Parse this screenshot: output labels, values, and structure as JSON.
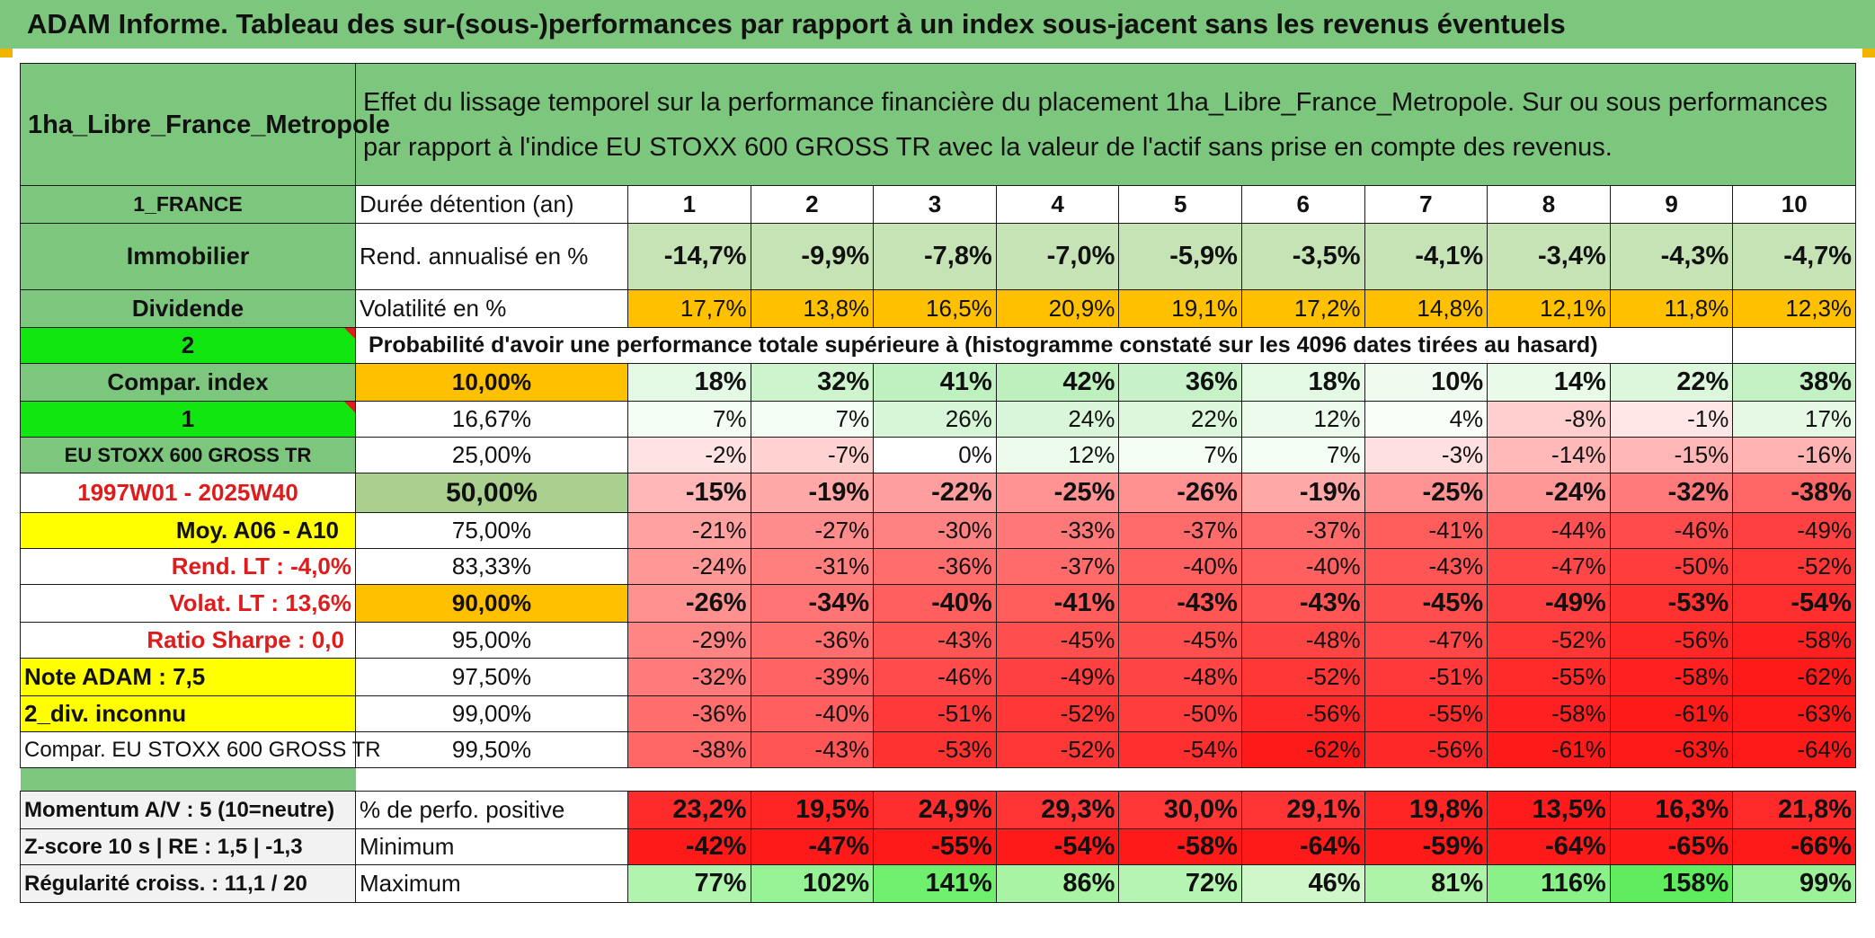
{
  "title": "ADAM Informe. Tableau des sur-(sous-)performances par rapport à un index sous-jacent sans les revenus éventuels",
  "header": {
    "left": "1ha_Libre_France_Metropole",
    "description": "Effet du lissage temporel sur la performance financière du placement 1ha_Libre_France_Metropole. Sur ou sous performances par rapport à l'indice EU STOXX 600 GROSS TR avec la valeur de l'actif sans prise en compte des revenus."
  },
  "sidebar": {
    "country": "1_FRANCE",
    "asset_class": "Immobilier",
    "income": "Dividende",
    "num_2": "2",
    "compar_index": "Compar. index",
    "num_1": "1",
    "index_name": "EU STOXX 600 GROSS TR",
    "period": "1997W01 - 2025W40",
    "moy": "Moy. A06 - A10",
    "rend_lt": "Rend. LT :    -4,0%",
    "volat_lt": "Volat. LT :    13,6%",
    "sharpe": "Ratio Sharpe :    0,0",
    "note": "Note ADAM : 7,5",
    "div": "2_div. inconnu",
    "compar_full": "Compar. EU STOXX 600 GROSS TR",
    "momentum": "Momentum A/V : 5 (10=neutre)",
    "zscore": "Z-score 10 s | RE : 1,5 | -1,3",
    "regularite": "Régularité croiss. : 11,1 / 20"
  },
  "row_labels": {
    "duree": "Durée détention (an)",
    "rend": "Rend. annualisé en %",
    "vol": "Volatilité en %",
    "proba": "Probabilité d'avoir une performance totale supérieure à (histogramme constaté sur les 4096 dates tirées au hasard)",
    "pos": "% de perfo. positive",
    "min": "Minimum",
    "max": "Maximum"
  },
  "years": [
    "1",
    "2",
    "3",
    "4",
    "5",
    "6",
    "7",
    "8",
    "9",
    "10"
  ],
  "rend": [
    "-14,7%",
    "-9,9%",
    "-7,8%",
    "-7,0%",
    "-5,9%",
    "-3,5%",
    "-4,1%",
    "-3,4%",
    "-4,3%",
    "-4,7%"
  ],
  "vol": [
    "17,7%",
    "13,8%",
    "16,5%",
    "20,9%",
    "19,1%",
    "17,2%",
    "14,8%",
    "12,1%",
    "11,8%",
    "12,3%"
  ],
  "percentiles": [
    {
      "p": "10,00%",
      "v": [
        "18%",
        "32%",
        "41%",
        "42%",
        "36%",
        "18%",
        "10%",
        "14%",
        "22%",
        "38%"
      ],
      "bold": true
    },
    {
      "p": "16,67%",
      "v": [
        "7%",
        "7%",
        "26%",
        "24%",
        "22%",
        "12%",
        "4%",
        "-8%",
        "-1%",
        "17%"
      ],
      "bold": false
    },
    {
      "p": "25,00%",
      "v": [
        "-2%",
        "-7%",
        "0%",
        "12%",
        "7%",
        "7%",
        "-3%",
        "-14%",
        "-15%",
        "-16%"
      ],
      "bold": false
    },
    {
      "p": "50,00%",
      "v": [
        "-15%",
        "-19%",
        "-22%",
        "-25%",
        "-26%",
        "-19%",
        "-25%",
        "-24%",
        "-32%",
        "-38%"
      ],
      "bold": true
    },
    {
      "p": "75,00%",
      "v": [
        "-21%",
        "-27%",
        "-30%",
        "-33%",
        "-37%",
        "-37%",
        "-41%",
        "-44%",
        "-46%",
        "-49%"
      ],
      "bold": false
    },
    {
      "p": "83,33%",
      "v": [
        "-24%",
        "-31%",
        "-36%",
        "-37%",
        "-40%",
        "-40%",
        "-43%",
        "-47%",
        "-50%",
        "-52%"
      ],
      "bold": false
    },
    {
      "p": "90,00%",
      "v": [
        "-26%",
        "-34%",
        "-40%",
        "-41%",
        "-43%",
        "-43%",
        "-45%",
        "-49%",
        "-53%",
        "-54%"
      ],
      "bold": true
    },
    {
      "p": "95,00%",
      "v": [
        "-29%",
        "-36%",
        "-43%",
        "-45%",
        "-45%",
        "-48%",
        "-47%",
        "-52%",
        "-56%",
        "-58%"
      ],
      "bold": false
    },
    {
      "p": "97,50%",
      "v": [
        "-32%",
        "-39%",
        "-46%",
        "-49%",
        "-48%",
        "-52%",
        "-51%",
        "-55%",
        "-58%",
        "-62%"
      ],
      "bold": false
    },
    {
      "p": "99,00%",
      "v": [
        "-36%",
        "-40%",
        "-51%",
        "-52%",
        "-50%",
        "-56%",
        "-55%",
        "-58%",
        "-61%",
        "-63%"
      ],
      "bold": false
    },
    {
      "p": "99,50%",
      "v": [
        "-38%",
        "-43%",
        "-53%",
        "-52%",
        "-54%",
        "-62%",
        "-56%",
        "-61%",
        "-63%",
        "-64%"
      ],
      "bold": false
    }
  ],
  "pos": [
    "23,2%",
    "19,5%",
    "24,9%",
    "29,3%",
    "30,0%",
    "29,1%",
    "19,8%",
    "13,5%",
    "16,3%",
    "21,8%"
  ],
  "min": [
    "-42%",
    "-47%",
    "-55%",
    "-54%",
    "-58%",
    "-64%",
    "-59%",
    "-64%",
    "-65%",
    "-66%"
  ],
  "max": [
    "77%",
    "102%",
    "141%",
    "86%",
    "72%",
    "46%",
    "81%",
    "116%",
    "158%",
    "99%"
  ],
  "colors": {
    "header_green": "#7dc67d",
    "bright_green": "#11e611",
    "yellow": "#ffff00",
    "orange": "#ffc000",
    "red_text": "#e01b1b"
  }
}
